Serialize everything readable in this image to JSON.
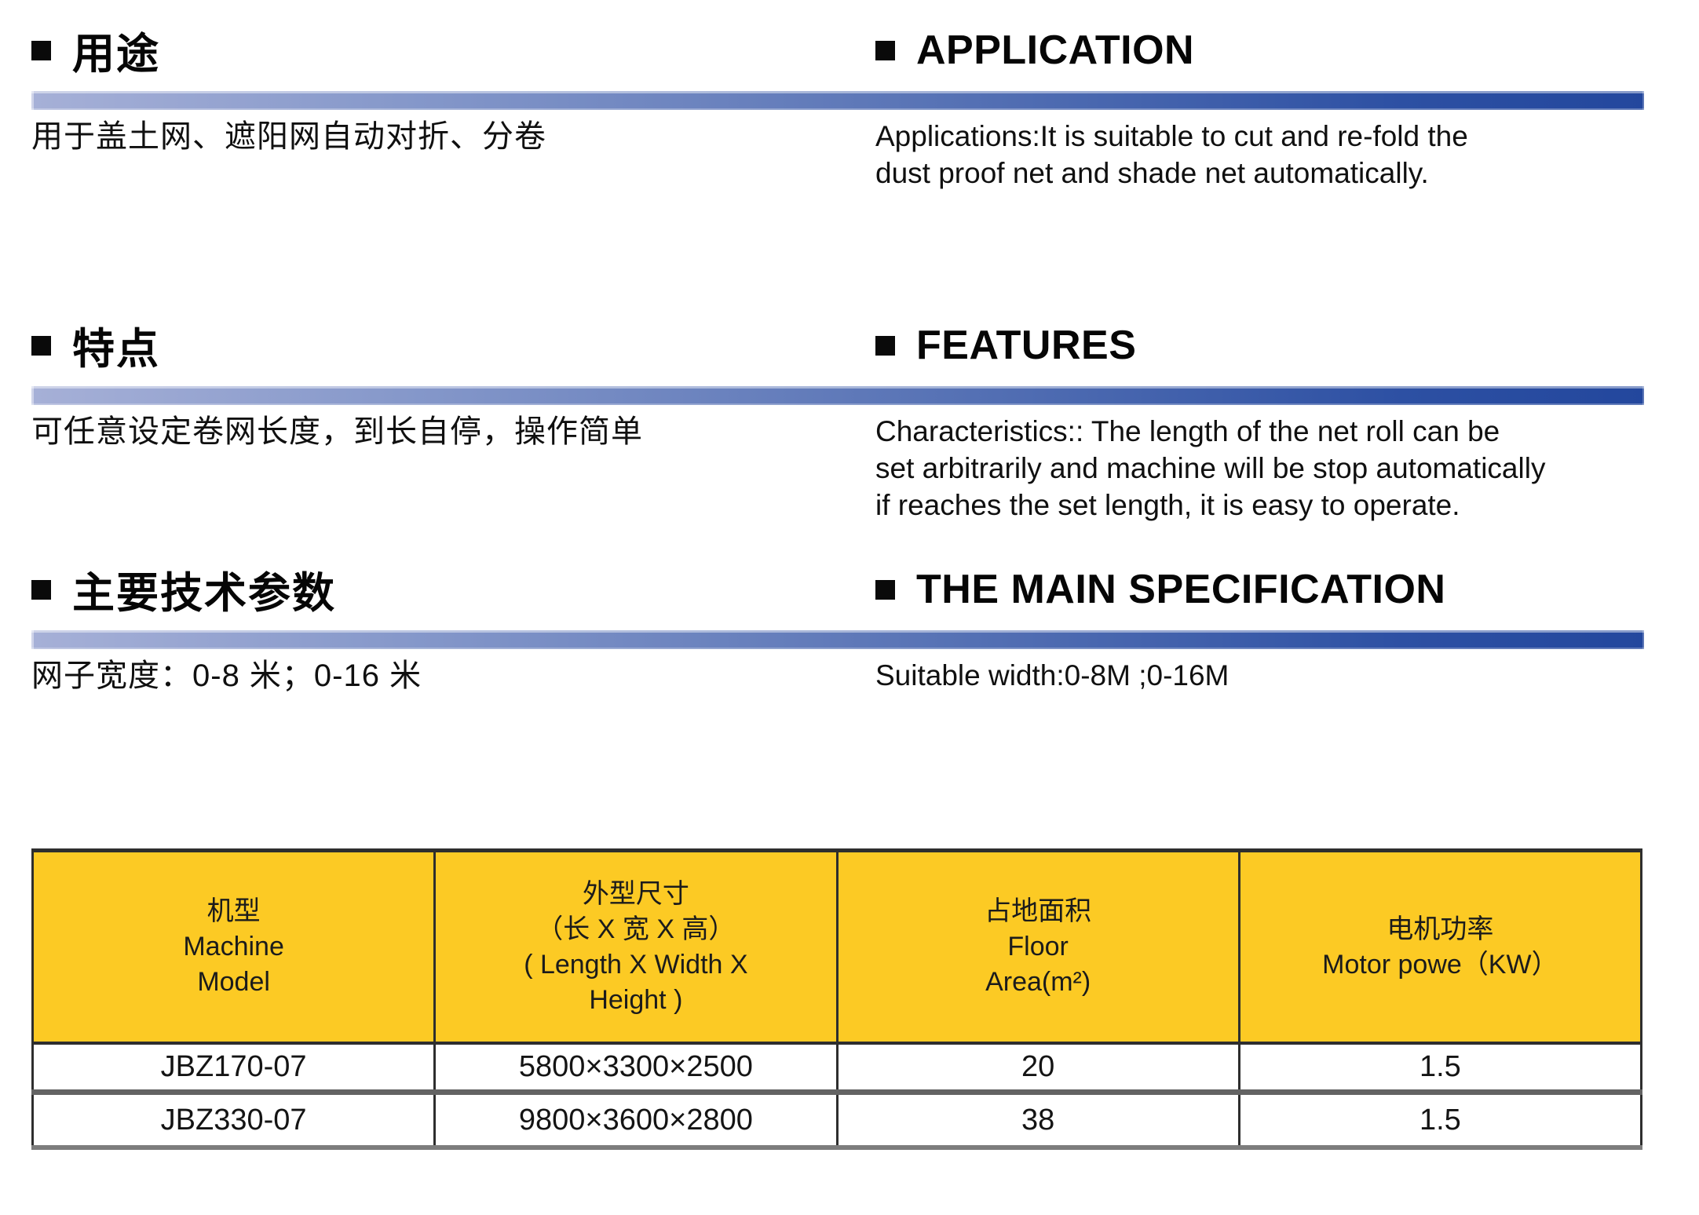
{
  "colors": {
    "bar_gradient_start": "#a6b0d7",
    "bar_gradient_end": "#23479d",
    "table_header_bg": "#fcca24",
    "table_border_dark": "#2e2e2e",
    "table_border_gray": "#7d7d7d",
    "bullet": "#0a0a0a",
    "text": "#101010"
  },
  "sections": [
    {
      "zh_title": "用途",
      "en_title": "APPLICATION",
      "zh_body_lines": [
        "用于盖土网、遮阳网自动对折、分卷"
      ],
      "en_body_lines": [
        "Applications:It is suitable to cut and re-fold the",
        "dust proof net and shade net automatically."
      ]
    },
    {
      "zh_title": "特点",
      "en_title": "FEATURES",
      "zh_body_lines": [
        "可任意设定卷网长度，到长自停，操作简单"
      ],
      "en_body_lines": [
        "Characteristics:: The length of the net roll can be",
        "set arbitrarily and machine will be stop automatically",
        "if reaches the set length, it is easy to operate."
      ]
    },
    {
      "zh_title": "主要技术参数",
      "en_title": "THE MAIN SPECIFICATION",
      "zh_body_lines": [
        "网子宽度：0-8 米；0-16 米"
      ],
      "en_body_lines": [
        "Suitable width:0-8M ;0-16M"
      ]
    }
  ],
  "spec_table": {
    "headers": [
      {
        "lines": [
          "机型",
          "Machine",
          "Model"
        ]
      },
      {
        "lines": [
          "外型尺寸",
          "（长 X 宽 X 高）",
          "( Length X Width X",
          "Height )"
        ]
      },
      {
        "lines": [
          "占地面积",
          "Floor",
          "Area(m²)"
        ]
      },
      {
        "lines": [
          "电机功率",
          "Motor powe（KW）"
        ]
      }
    ],
    "rows": [
      [
        "JBZ170-07",
        "5800×3300×2500",
        "20",
        "1.5"
      ],
      [
        "JBZ330-07",
        "9800×3600×2800",
        "38",
        "1.5"
      ]
    ]
  }
}
